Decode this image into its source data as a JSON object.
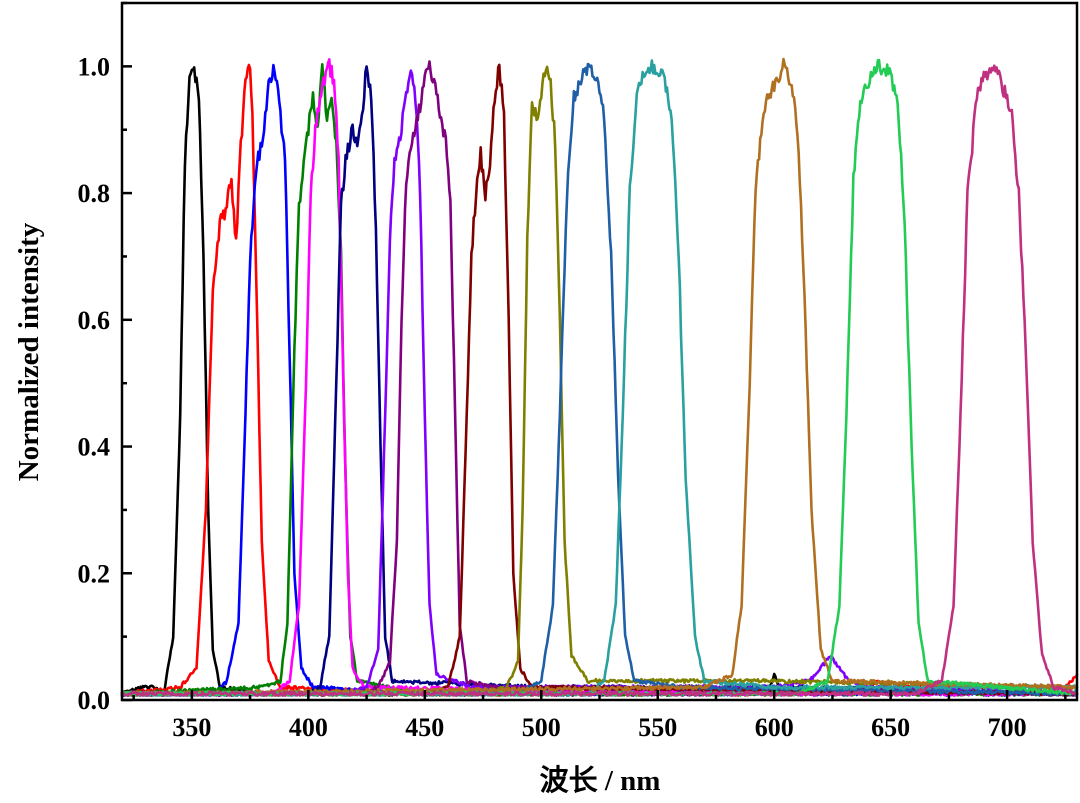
{
  "chart_data": {
    "type": "line",
    "title": "",
    "xlabel": "波长 / nm",
    "ylabel": "Normalized intensity",
    "xlim": [
      320,
      730
    ],
    "ylim": [
      0.0,
      1.1
    ],
    "x_ticks": [
      350,
      400,
      450,
      500,
      550,
      600,
      650,
      700
    ],
    "y_ticks": [
      0.0,
      0.2,
      0.4,
      0.6,
      0.8,
      1.0
    ],
    "y_tick_labels": [
      "0.0",
      "0.2",
      "0.4",
      "0.6",
      "0.8",
      "1.0"
    ],
    "legend": "none",
    "grid": false,
    "series": [
      {
        "color": "#000000",
        "peak_nm": 351,
        "fwhm_nm": 10,
        "base": 0.01,
        "points": [
          [
            320,
            0.01
          ],
          [
            328,
            0.02
          ],
          [
            333,
            0.02
          ],
          [
            338,
            0.01
          ],
          [
            342,
            0.1
          ],
          [
            345,
            0.45
          ],
          [
            347,
            0.85
          ],
          [
            349,
            0.98
          ],
          [
            351,
            1.0
          ],
          [
            353,
            0.95
          ],
          [
            355,
            0.7
          ],
          [
            357,
            0.3
          ],
          [
            359,
            0.08
          ],
          [
            362,
            0.02
          ],
          [
            380,
            0.01
          ],
          [
            450,
            0.01
          ],
          [
            560,
            0.01
          ],
          [
            598,
            0.02
          ],
          [
            600,
            0.04
          ],
          [
            602,
            0.02
          ],
          [
            730,
            0.01
          ]
        ]
      },
      {
        "color": "#ff0000",
        "peak_nm": 375,
        "fwhm_nm": 20,
        "base": 0.01,
        "points": [
          [
            320,
            0.01
          ],
          [
            345,
            0.02
          ],
          [
            352,
            0.05
          ],
          [
            356,
            0.3
          ],
          [
            359,
            0.65
          ],
          [
            362,
            0.75
          ],
          [
            365,
            0.78
          ],
          [
            367,
            0.82
          ],
          [
            369,
            0.72
          ],
          [
            371,
            0.88
          ],
          [
            373,
            0.97
          ],
          [
            375,
            1.0
          ],
          [
            376,
            0.92
          ],
          [
            378,
            0.6
          ],
          [
            380,
            0.25
          ],
          [
            383,
            0.06
          ],
          [
            388,
            0.02
          ],
          [
            450,
            0.01
          ],
          [
            600,
            0.01
          ],
          [
            640,
            0.02
          ],
          [
            645,
            0.03
          ],
          [
            650,
            0.02
          ],
          [
            725,
            0.02
          ],
          [
            730,
            0.04
          ]
        ]
      },
      {
        "color": "#0000ff",
        "peak_nm": 385,
        "fwhm_nm": 17,
        "base": 0.01,
        "points": [
          [
            320,
            0.01
          ],
          [
            360,
            0.01
          ],
          [
            365,
            0.03
          ],
          [
            370,
            0.12
          ],
          [
            373,
            0.45
          ],
          [
            375,
            0.7
          ],
          [
            378,
            0.85
          ],
          [
            380,
            0.88
          ],
          [
            383,
            0.97
          ],
          [
            385,
            1.0
          ],
          [
            387,
            0.96
          ],
          [
            390,
            0.85
          ],
          [
            392,
            0.55
          ],
          [
            394,
            0.2
          ],
          [
            397,
            0.05
          ],
          [
            402,
            0.02
          ],
          [
            450,
            0.01
          ],
          [
            600,
            0.01
          ],
          [
            730,
            0.01
          ]
        ]
      },
      {
        "color": "#008000",
        "peak_nm": 405,
        "fwhm_nm": 24,
        "base": 0.01,
        "points": [
          [
            320,
            0.01
          ],
          [
            380,
            0.02
          ],
          [
            388,
            0.03
          ],
          [
            391,
            0.12
          ],
          [
            394,
            0.55
          ],
          [
            396,
            0.78
          ],
          [
            399,
            0.88
          ],
          [
            402,
            0.95
          ],
          [
            404,
            0.9
          ],
          [
            406,
            1.0
          ],
          [
            408,
            0.92
          ],
          [
            410,
            0.95
          ],
          [
            412,
            0.88
          ],
          [
            414,
            0.7
          ],
          [
            416,
            0.35
          ],
          [
            418,
            0.1
          ],
          [
            421,
            0.03
          ],
          [
            450,
            0.01
          ],
          [
            600,
            0.01
          ],
          [
            730,
            0.01
          ]
        ]
      },
      {
        "color": "#ff00ff",
        "peak_nm": 410,
        "fwhm_nm": 18,
        "base": 0.01,
        "points": [
          [
            320,
            0.01
          ],
          [
            385,
            0.01
          ],
          [
            392,
            0.03
          ],
          [
            396,
            0.15
          ],
          [
            399,
            0.5
          ],
          [
            401,
            0.8
          ],
          [
            403,
            0.9
          ],
          [
            405,
            0.95
          ],
          [
            407,
            0.98
          ],
          [
            409,
            1.0
          ],
          [
            411,
            0.98
          ],
          [
            413,
            0.85
          ],
          [
            415,
            0.5
          ],
          [
            417,
            0.2
          ],
          [
            419,
            0.05
          ],
          [
            424,
            0.02
          ],
          [
            600,
            0.01
          ],
          [
            730,
            0.01
          ]
        ]
      },
      {
        "color": "#000080",
        "peak_nm": 426,
        "fwhm_nm": 20,
        "base": 0.01,
        "points": [
          [
            320,
            0.01
          ],
          [
            400,
            0.01
          ],
          [
            405,
            0.02
          ],
          [
            409,
            0.1
          ],
          [
            412,
            0.5
          ],
          [
            414,
            0.78
          ],
          [
            416,
            0.85
          ],
          [
            419,
            0.9
          ],
          [
            421,
            0.88
          ],
          [
            423,
            0.92
          ],
          [
            425,
            1.0
          ],
          [
            427,
            0.95
          ],
          [
            429,
            0.75
          ],
          [
            431,
            0.4
          ],
          [
            433,
            0.1
          ],
          [
            436,
            0.03
          ],
          [
            500,
            0.02
          ],
          [
            600,
            0.02
          ],
          [
            730,
            0.01
          ]
        ]
      },
      {
        "color": "#8000ff",
        "peak_nm": 445,
        "fwhm_nm": 18,
        "base": 0.01,
        "points": [
          [
            320,
            0.01
          ],
          [
            415,
            0.01
          ],
          [
            425,
            0.02
          ],
          [
            430,
            0.08
          ],
          [
            433,
            0.45
          ],
          [
            435,
            0.72
          ],
          [
            437,
            0.85
          ],
          [
            440,
            0.9
          ],
          [
            442,
            0.96
          ],
          [
            444,
            1.0
          ],
          [
            446,
            0.95
          ],
          [
            448,
            0.8
          ],
          [
            450,
            0.45
          ],
          [
            452,
            0.15
          ],
          [
            455,
            0.04
          ],
          [
            470,
            0.02
          ],
          [
            600,
            0.02
          ],
          [
            615,
            0.03
          ],
          [
            620,
            0.05
          ],
          [
            624,
            0.07
          ],
          [
            628,
            0.05
          ],
          [
            632,
            0.03
          ],
          [
            640,
            0.02
          ],
          [
            730,
            0.01
          ]
        ]
      },
      {
        "color": "#800080",
        "peak_nm": 452,
        "fwhm_nm": 22,
        "base": 0.01,
        "points": [
          [
            320,
            0.01
          ],
          [
            420,
            0.01
          ],
          [
            430,
            0.02
          ],
          [
            435,
            0.06
          ],
          [
            438,
            0.25
          ],
          [
            440,
            0.6
          ],
          [
            442,
            0.82
          ],
          [
            444,
            0.88
          ],
          [
            447,
            0.92
          ],
          [
            450,
            0.98
          ],
          [
            452,
            1.0
          ],
          [
            454,
            0.97
          ],
          [
            457,
            0.92
          ],
          [
            459,
            0.88
          ],
          [
            461,
            0.78
          ],
          [
            463,
            0.45
          ],
          [
            465,
            0.12
          ],
          [
            468,
            0.03
          ],
          [
            480,
            0.02
          ],
          [
            730,
            0.01
          ]
        ]
      },
      {
        "color": "#800000",
        "peak_nm": 482,
        "fwhm_nm": 16,
        "base": 0.01,
        "points": [
          [
            320,
            0.01
          ],
          [
            450,
            0.01
          ],
          [
            460,
            0.02
          ],
          [
            465,
            0.1
          ],
          [
            468,
            0.45
          ],
          [
            470,
            0.7
          ],
          [
            472,
            0.8
          ],
          [
            474,
            0.86
          ],
          [
            476,
            0.8
          ],
          [
            478,
            0.85
          ],
          [
            480,
            0.95
          ],
          [
            482,
            1.0
          ],
          [
            484,
            0.92
          ],
          [
            486,
            0.6
          ],
          [
            488,
            0.2
          ],
          [
            491,
            0.05
          ],
          [
            496,
            0.02
          ],
          [
            730,
            0.01
          ]
        ]
      },
      {
        "color": "#808000",
        "peak_nm": 502,
        "fwhm_nm": 16,
        "base": 0.02,
        "points": [
          [
            320,
            0.01
          ],
          [
            470,
            0.01
          ],
          [
            485,
            0.02
          ],
          [
            490,
            0.06
          ],
          [
            492,
            0.3
          ],
          [
            494,
            0.72
          ],
          [
            496,
            0.95
          ],
          [
            498,
            0.92
          ],
          [
            500,
            0.96
          ],
          [
            502,
            1.0
          ],
          [
            504,
            0.97
          ],
          [
            506,
            0.88
          ],
          [
            508,
            0.6
          ],
          [
            510,
            0.25
          ],
          [
            513,
            0.07
          ],
          [
            520,
            0.03
          ],
          [
            600,
            0.03
          ],
          [
            730,
            0.02
          ]
        ]
      },
      {
        "color": "#1f5fa8",
        "peak_nm": 521,
        "fwhm_nm": 20,
        "base": 0.01,
        "points": [
          [
            320,
            0.01
          ],
          [
            490,
            0.01
          ],
          [
            500,
            0.03
          ],
          [
            505,
            0.15
          ],
          [
            508,
            0.45
          ],
          [
            511,
            0.8
          ],
          [
            514,
            0.95
          ],
          [
            518,
            0.99
          ],
          [
            521,
            1.0
          ],
          [
            524,
            0.98
          ],
          [
            527,
            0.92
          ],
          [
            530,
            0.7
          ],
          [
            533,
            0.35
          ],
          [
            536,
            0.1
          ],
          [
            540,
            0.03
          ],
          [
            560,
            0.02
          ],
          [
            730,
            0.01
          ]
        ]
      },
      {
        "color": "#2aa0a0",
        "peak_nm": 548,
        "fwhm_nm": 22,
        "base": 0.02,
        "points": [
          [
            320,
            0.01
          ],
          [
            520,
            0.01
          ],
          [
            527,
            0.03
          ],
          [
            532,
            0.15
          ],
          [
            535,
            0.45
          ],
          [
            538,
            0.8
          ],
          [
            541,
            0.95
          ],
          [
            544,
            0.99
          ],
          [
            548,
            1.0
          ],
          [
            552,
            0.99
          ],
          [
            556,
            0.92
          ],
          [
            559,
            0.7
          ],
          [
            562,
            0.35
          ],
          [
            566,
            0.1
          ],
          [
            570,
            0.03
          ],
          [
            600,
            0.02
          ],
          [
            730,
            0.02
          ]
        ]
      },
      {
        "color": "#b07020",
        "peak_nm": 604,
        "fwhm_nm": 24,
        "base": 0.02,
        "points": [
          [
            320,
            0.01
          ],
          [
            570,
            0.02
          ],
          [
            582,
            0.04
          ],
          [
            586,
            0.15
          ],
          [
            589,
            0.45
          ],
          [
            592,
            0.8
          ],
          [
            595,
            0.92
          ],
          [
            598,
            0.96
          ],
          [
            601,
            0.98
          ],
          [
            604,
            1.0
          ],
          [
            607,
            0.98
          ],
          [
            610,
            0.9
          ],
          [
            613,
            0.65
          ],
          [
            616,
            0.3
          ],
          [
            620,
            0.08
          ],
          [
            625,
            0.03
          ],
          [
            730,
            0.02
          ]
        ]
      },
      {
        "color": "#22cc55",
        "peak_nm": 647,
        "fwhm_nm": 24,
        "base": 0.01,
        "points": [
          [
            320,
            0.01
          ],
          [
            610,
            0.01
          ],
          [
            623,
            0.03
          ],
          [
            628,
            0.15
          ],
          [
            631,
            0.45
          ],
          [
            634,
            0.82
          ],
          [
            637,
            0.95
          ],
          [
            641,
            0.98
          ],
          [
            645,
            1.0
          ],
          [
            649,
            0.99
          ],
          [
            653,
            0.95
          ],
          [
            656,
            0.75
          ],
          [
            659,
            0.4
          ],
          [
            662,
            0.12
          ],
          [
            666,
            0.03
          ],
          [
            730,
            0.01
          ]
        ]
      },
      {
        "color": "#c03080",
        "peak_nm": 694,
        "fwhm_nm": 24,
        "base": 0.01,
        "points": [
          [
            320,
            0.01
          ],
          [
            660,
            0.01
          ],
          [
            672,
            0.03
          ],
          [
            677,
            0.15
          ],
          [
            680,
            0.45
          ],
          [
            683,
            0.8
          ],
          [
            687,
            0.95
          ],
          [
            691,
            0.99
          ],
          [
            694,
            1.0
          ],
          [
            698,
            0.97
          ],
          [
            702,
            0.92
          ],
          [
            705,
            0.8
          ],
          [
            708,
            0.55
          ],
          [
            711,
            0.25
          ],
          [
            715,
            0.07
          ],
          [
            720,
            0.02
          ],
          [
            730,
            0.01
          ]
        ]
      }
    ]
  }
}
